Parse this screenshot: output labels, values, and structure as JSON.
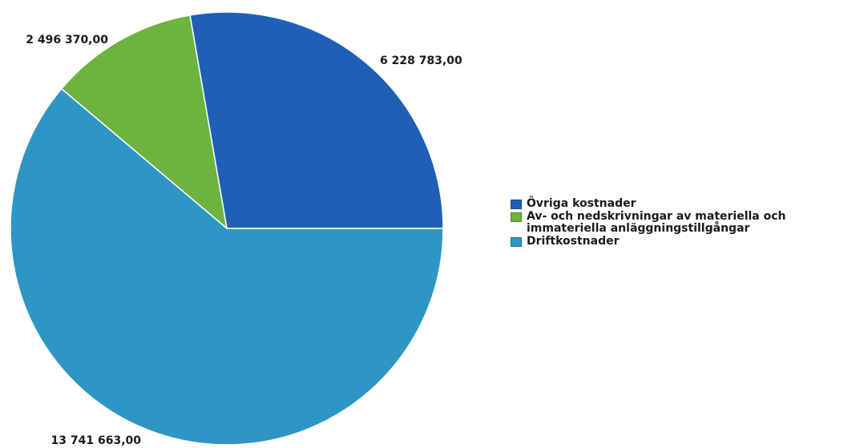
{
  "chart_data": {
    "type": "pie",
    "slices": [
      {
        "label": "Övriga kostnader",
        "value": 6228783.0,
        "value_text": "6 228 783,00",
        "color": "#1f5fb6"
      },
      {
        "label": "Av- och nedskrivningar av materiella och immateriella anläggningstillgångar",
        "value": 2496370.0,
        "value_text": "2 496 370,00",
        "color": "#6db33f"
      },
      {
        "label": "Driftkostnader",
        "value": 13741663.0,
        "value_text": "13 741 663,00",
        "color": "#2e96c4"
      }
    ],
    "legend": {
      "placement": "right",
      "items": [
        {
          "label": "Övriga kostnader",
          "color": "#1f5fb6"
        },
        {
          "label": "Av- och nedskrivningar av materiella och immateriella anläggningstillgångar",
          "color": "#6db33f"
        },
        {
          "label": "Driftkostnader",
          "color": "#2e96c4"
        }
      ]
    },
    "title": ""
  }
}
